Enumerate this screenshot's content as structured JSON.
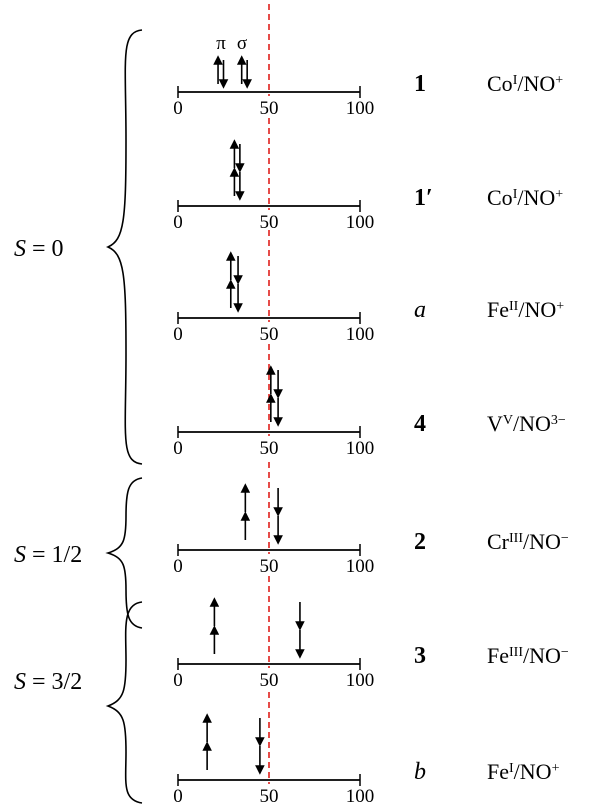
{
  "axis": {
    "ticks": [
      0,
      50,
      100
    ],
    "reference_value": 50,
    "reference_color": "#e0201c"
  },
  "orbital_labels": [
    "π",
    "σ"
  ],
  "groups": [
    {
      "label_italic": "S",
      "label_rest": " = 0"
    },
    {
      "label_italic": "S",
      "label_rest": " = 1/2"
    },
    {
      "label_italic": "S",
      "label_rest": " = 3/2"
    }
  ],
  "rows": [
    {
      "label": "1",
      "label_style": "bold",
      "metal": "Co",
      "ox": "I",
      "ligand": "/NO",
      "charge": "+",
      "arrows": [
        {
          "x": 22,
          "dir": "up",
          "stack": "pair"
        },
        {
          "x": 25,
          "dir": "down",
          "stack": "pair"
        },
        {
          "x": 35,
          "dir": "up",
          "stack": "pair"
        },
        {
          "x": 38,
          "dir": "down",
          "stack": "pair"
        }
      ]
    },
    {
      "label": "1′",
      "label_style": "bold",
      "metal": "Co",
      "ox": "I",
      "ligand": "/NO",
      "charge": "+",
      "arrows": [
        {
          "x": 31,
          "dir": "up",
          "stack": "top"
        },
        {
          "x": 34,
          "dir": "down",
          "stack": "top"
        },
        {
          "x": 31,
          "dir": "up",
          "stack": "bottom"
        },
        {
          "x": 34,
          "dir": "down",
          "stack": "bottom"
        }
      ]
    },
    {
      "label": "a",
      "label_style": "italic",
      "metal": "Fe",
      "ox": "II",
      "ligand": "/NO",
      "charge": "+",
      "arrows": [
        {
          "x": 29,
          "dir": "up",
          "stack": "top"
        },
        {
          "x": 33,
          "dir": "down",
          "stack": "top"
        },
        {
          "x": 29,
          "dir": "up",
          "stack": "bottom"
        },
        {
          "x": 33,
          "dir": "down",
          "stack": "bottom"
        }
      ]
    },
    {
      "label": "4",
      "label_style": "bold",
      "metal": "V",
      "ox": "V",
      "ligand": "/NO",
      "charge": "3−",
      "arrows": [
        {
          "x": 51,
          "dir": "up",
          "stack": "top"
        },
        {
          "x": 55,
          "dir": "down",
          "stack": "top"
        },
        {
          "x": 51,
          "dir": "up",
          "stack": "bottom"
        },
        {
          "x": 55,
          "dir": "down",
          "stack": "bottom"
        }
      ]
    },
    {
      "label": "2",
      "label_style": "bold",
      "metal": "Cr",
      "ox": "III",
      "ligand": "/NO",
      "charge": "−",
      "arrows": [
        {
          "x": 37,
          "dir": "up",
          "stack": "top"
        },
        {
          "x": 55,
          "dir": "down",
          "stack": "top"
        },
        {
          "x": 37,
          "dir": "up",
          "stack": "bottom"
        },
        {
          "x": 55,
          "dir": "down",
          "stack": "bottom"
        }
      ]
    },
    {
      "label": "3",
      "label_style": "bold",
      "metal": "Fe",
      "ox": "III",
      "ligand": "/NO",
      "charge": "−",
      "arrows": [
        {
          "x": 20,
          "dir": "up",
          "stack": "top"
        },
        {
          "x": 67,
          "dir": "down",
          "stack": "top"
        },
        {
          "x": 20,
          "dir": "up",
          "stack": "bottom"
        },
        {
          "x": 67,
          "dir": "down",
          "stack": "bottom"
        }
      ]
    },
    {
      "label": "b",
      "label_style": "italic",
      "metal": "Fe",
      "ox": "I",
      "ligand": "/NO",
      "charge": "+",
      "arrows": [
        {
          "x": 16,
          "dir": "up",
          "stack": "top"
        },
        {
          "x": 45,
          "dir": "down",
          "stack": "top"
        },
        {
          "x": 16,
          "dir": "up",
          "stack": "bottom"
        },
        {
          "x": 45,
          "dir": "down",
          "stack": "bottom"
        }
      ]
    }
  ]
}
